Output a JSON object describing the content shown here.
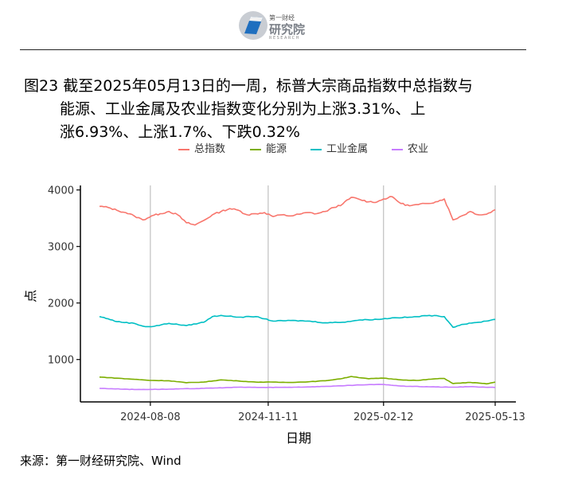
{
  "header": {
    "logo_small": "第一财经",
    "logo_big": "研究院",
    "logo_en": "RESEARCH"
  },
  "figure": {
    "title_line1": "图23  截至2025年05月13日的一周，标普大宗商品指数中总指数与",
    "title_line2": "能源、工业金属及农业指数变化分别为上涨3.31%、上",
    "title_line3": "涨6.93%、上涨1.7%、下跌0.32%",
    "source": "来源：第一财经研究院、Wind"
  },
  "chart_data": {
    "type": "line",
    "xlabel": "日期",
    "ylabel": "点",
    "x_range": [
      "2024-06-28",
      "2025-05-13"
    ],
    "ylim": [
      250,
      4080
    ],
    "yticks": [
      1000,
      2000,
      3000,
      4000
    ],
    "xticks": [
      "2024-08-08",
      "2024-11-11",
      "2025-02-12",
      "2025-05-13"
    ],
    "grid": "vertical lines at x ticks",
    "legend": "top",
    "series": [
      {
        "name": "总指数",
        "color": "#F8766D",
        "points": [
          [
            "2024-06-28",
            3710
          ],
          [
            "2024-07-05",
            3690
          ],
          [
            "2024-07-12",
            3640
          ],
          [
            "2024-07-19",
            3600
          ],
          [
            "2024-07-26",
            3540
          ],
          [
            "2024-08-02",
            3470
          ],
          [
            "2024-08-09",
            3540
          ],
          [
            "2024-08-16",
            3580
          ],
          [
            "2024-08-23",
            3620
          ],
          [
            "2024-08-30",
            3560
          ],
          [
            "2024-09-06",
            3420
          ],
          [
            "2024-09-13",
            3380
          ],
          [
            "2024-09-20",
            3460
          ],
          [
            "2024-09-27",
            3560
          ],
          [
            "2024-10-04",
            3620
          ],
          [
            "2024-10-11",
            3670
          ],
          [
            "2024-10-18",
            3640
          ],
          [
            "2024-10-25",
            3560
          ],
          [
            "2024-11-01",
            3580
          ],
          [
            "2024-11-08",
            3600
          ],
          [
            "2024-11-15",
            3530
          ],
          [
            "2024-11-22",
            3560
          ],
          [
            "2024-11-29",
            3540
          ],
          [
            "2024-12-06",
            3570
          ],
          [
            "2024-12-13",
            3600
          ],
          [
            "2024-12-20",
            3580
          ],
          [
            "2024-12-27",
            3620
          ],
          [
            "2025-01-03",
            3690
          ],
          [
            "2025-01-10",
            3750
          ],
          [
            "2025-01-17",
            3870
          ],
          [
            "2025-01-24",
            3830
          ],
          [
            "2025-01-31",
            3790
          ],
          [
            "2025-02-07",
            3790
          ],
          [
            "2025-02-12",
            3840
          ],
          [
            "2025-02-19",
            3880
          ],
          [
            "2025-02-26",
            3760
          ],
          [
            "2025-03-05",
            3720
          ],
          [
            "2025-03-12",
            3740
          ],
          [
            "2025-03-19",
            3760
          ],
          [
            "2025-03-26",
            3790
          ],
          [
            "2025-04-02",
            3840
          ],
          [
            "2025-04-09",
            3470
          ],
          [
            "2025-04-16",
            3540
          ],
          [
            "2025-04-23",
            3620
          ],
          [
            "2025-04-30",
            3560
          ],
          [
            "2025-05-06",
            3570
          ],
          [
            "2025-05-13",
            3650
          ]
        ]
      },
      {
        "name": "能源",
        "color": "#7CAE00",
        "points": [
          [
            "2024-06-28",
            690
          ],
          [
            "2024-07-12",
            670
          ],
          [
            "2024-07-26",
            650
          ],
          [
            "2024-08-09",
            630
          ],
          [
            "2024-08-23",
            625
          ],
          [
            "2024-09-06",
            590
          ],
          [
            "2024-09-20",
            600
          ],
          [
            "2024-10-04",
            640
          ],
          [
            "2024-10-18",
            620
          ],
          [
            "2024-11-01",
            600
          ],
          [
            "2024-11-15",
            600
          ],
          [
            "2024-11-29",
            595
          ],
          [
            "2024-12-13",
            605
          ],
          [
            "2024-12-27",
            625
          ],
          [
            "2025-01-10",
            665
          ],
          [
            "2025-01-17",
            700
          ],
          [
            "2025-01-31",
            660
          ],
          [
            "2025-02-12",
            670
          ],
          [
            "2025-02-26",
            640
          ],
          [
            "2025-03-12",
            630
          ],
          [
            "2025-03-26",
            660
          ],
          [
            "2025-04-02",
            665
          ],
          [
            "2025-04-09",
            575
          ],
          [
            "2025-04-23",
            595
          ],
          [
            "2025-05-06",
            570
          ],
          [
            "2025-05-13",
            600
          ]
        ]
      },
      {
        "name": "工业金属",
        "color": "#00BFC4",
        "points": [
          [
            "2024-06-28",
            1760
          ],
          [
            "2024-07-05",
            1720
          ],
          [
            "2024-07-12",
            1670
          ],
          [
            "2024-07-26",
            1640
          ],
          [
            "2024-08-02",
            1590
          ],
          [
            "2024-08-09",
            1580
          ],
          [
            "2024-08-23",
            1640
          ],
          [
            "2024-09-06",
            1600
          ],
          [
            "2024-09-20",
            1660
          ],
          [
            "2024-09-27",
            1760
          ],
          [
            "2024-10-04",
            1780
          ],
          [
            "2024-10-18",
            1750
          ],
          [
            "2024-11-01",
            1760
          ],
          [
            "2024-11-08",
            1720
          ],
          [
            "2024-11-15",
            1680
          ],
          [
            "2024-11-29",
            1690
          ],
          [
            "2024-12-13",
            1680
          ],
          [
            "2024-12-27",
            1650
          ],
          [
            "2025-01-10",
            1660
          ],
          [
            "2025-01-24",
            1700
          ],
          [
            "2025-02-07",
            1710
          ],
          [
            "2025-02-21",
            1740
          ],
          [
            "2025-03-07",
            1750
          ],
          [
            "2025-03-21",
            1780
          ],
          [
            "2025-04-02",
            1760
          ],
          [
            "2025-04-09",
            1570
          ],
          [
            "2025-04-16",
            1620
          ],
          [
            "2025-04-30",
            1660
          ],
          [
            "2025-05-13",
            1710
          ]
        ]
      },
      {
        "name": "农业",
        "color": "#C77CFF",
        "points": [
          [
            "2024-06-28",
            490
          ],
          [
            "2024-07-26",
            470
          ],
          [
            "2024-08-23",
            475
          ],
          [
            "2024-09-20",
            490
          ],
          [
            "2024-10-18",
            510
          ],
          [
            "2024-11-15",
            505
          ],
          [
            "2024-12-13",
            515
          ],
          [
            "2025-01-10",
            535
          ],
          [
            "2025-01-24",
            550
          ],
          [
            "2025-02-12",
            560
          ],
          [
            "2025-02-26",
            530
          ],
          [
            "2025-03-26",
            515
          ],
          [
            "2025-04-09",
            510
          ],
          [
            "2025-04-23",
            520
          ],
          [
            "2025-05-13",
            505
          ]
        ]
      }
    ]
  }
}
